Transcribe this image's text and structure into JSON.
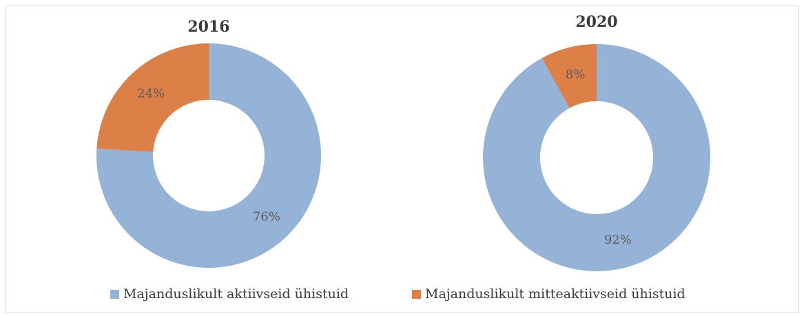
{
  "legend": {
    "categories": [
      "Majanduslikult aktiivseid ühistuid",
      "Majanduslikult mitteaktiivseid ühistuid"
    ],
    "colors": [
      "#95b3d7",
      "#dd8047"
    ]
  },
  "chart_data": [
    {
      "type": "pie",
      "title": "2016",
      "values": [
        76,
        24
      ],
      "value_labels": [
        "76%",
        "24%"
      ]
    },
    {
      "type": "pie",
      "title": "2020",
      "values": [
        92,
        8
      ],
      "value_labels": [
        "92%",
        "8%"
      ]
    }
  ]
}
